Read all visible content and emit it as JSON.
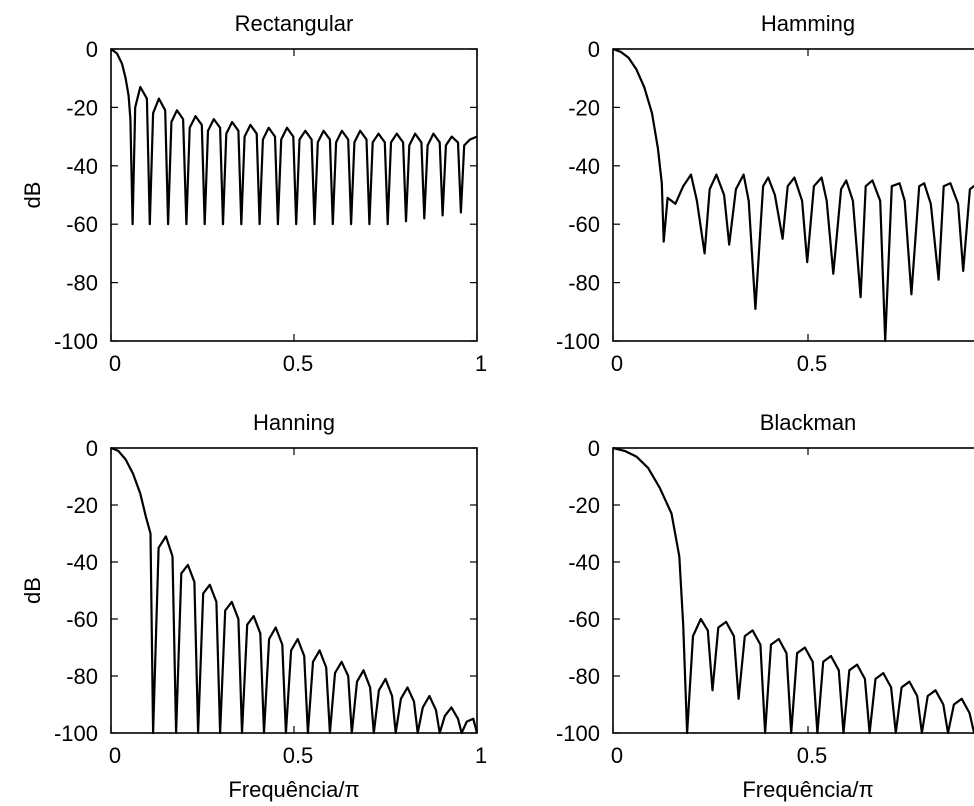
{
  "chart_data": [
    {
      "type": "line",
      "title": "Rectangular",
      "xlabel": "",
      "ylabel": "dB",
      "xlim": [
        0,
        1
      ],
      "ylim": [
        -100,
        0
      ],
      "xticks": [
        0,
        0.5,
        1
      ],
      "xtick_labels": [
        "0",
        "0.5",
        "1"
      ],
      "yticks": [
        0,
        -20,
        -40,
        -60,
        -80,
        -100
      ],
      "ytick_labels": [
        "0",
        "-20",
        "-40",
        "-60",
        "-80",
        "-100"
      ],
      "grid": false,
      "series": [
        {
          "x": [
            0,
            0.016,
            0.03,
            0.04,
            0.048,
            0.053,
            0.059,
            0.066,
            0.08,
            0.098,
            0.106,
            0.115,
            0.131,
            0.148,
            0.156,
            0.165,
            0.18,
            0.197,
            0.206,
            0.215,
            0.231,
            0.248,
            0.256,
            0.265,
            0.281,
            0.298,
            0.306,
            0.315,
            0.331,
            0.348,
            0.356,
            0.365,
            0.381,
            0.398,
            0.406,
            0.415,
            0.431,
            0.448,
            0.456,
            0.465,
            0.481,
            0.498,
            0.506,
            0.515,
            0.531,
            0.548,
            0.556,
            0.565,
            0.581,
            0.598,
            0.606,
            0.615,
            0.631,
            0.648,
            0.656,
            0.665,
            0.681,
            0.698,
            0.706,
            0.715,
            0.731,
            0.748,
            0.756,
            0.765,
            0.781,
            0.798,
            0.806,
            0.815,
            0.831,
            0.848,
            0.856,
            0.865,
            0.881,
            0.898,
            0.906,
            0.915,
            0.931,
            0.948,
            0.956,
            0.965,
            0.981,
            1.0
          ],
          "y": [
            0,
            -1.5,
            -5,
            -10,
            -16,
            -24,
            -60,
            -20,
            -13,
            -17,
            -60,
            -22,
            -17,
            -21,
            -60,
            -25,
            -21,
            -24,
            -60,
            -27,
            -23,
            -26,
            -60,
            -28,
            -24,
            -27,
            -60,
            -29,
            -25,
            -28,
            -60,
            -30,
            -26,
            -29,
            -60,
            -31,
            -27,
            -30,
            -60,
            -31,
            -27,
            -30,
            -60,
            -31,
            -28,
            -31,
            -60,
            -32,
            -28,
            -31,
            -60,
            -32,
            -28,
            -31,
            -60,
            -32,
            -28,
            -31,
            -60,
            -32,
            -29,
            -32,
            -60,
            -32,
            -29,
            -32,
            -59,
            -33,
            -29,
            -32,
            -58,
            -33,
            -29,
            -32,
            -57,
            -33,
            -30,
            -32,
            -56,
            -33,
            -31,
            -30
          ]
        }
      ]
    },
    {
      "type": "line",
      "title": "Hamming",
      "xlabel": "",
      "ylabel": "",
      "xlim": [
        0,
        1
      ],
      "ylim": [
        -100,
        0
      ],
      "xticks": [
        0,
        0.5
      ],
      "xtick_labels": [
        "0",
        "0.5"
      ],
      "yticks": [
        0,
        -20,
        -40,
        -60,
        -80,
        -100
      ],
      "ytick_labels": [
        "0",
        "-20",
        "-40",
        "-60",
        "-80",
        "-100"
      ],
      "grid": false,
      "series": [
        {
          "x": [
            0,
            0.02,
            0.04,
            0.06,
            0.08,
            0.1,
            0.115,
            0.125,
            0.13,
            0.14,
            0.16,
            0.18,
            0.2,
            0.215,
            0.235,
            0.248,
            0.265,
            0.285,
            0.298,
            0.315,
            0.335,
            0.348,
            0.365,
            0.385,
            0.398,
            0.415,
            0.435,
            0.448,
            0.465,
            0.485,
            0.498,
            0.515,
            0.535,
            0.548,
            0.565,
            0.585,
            0.598,
            0.615,
            0.635,
            0.648,
            0.665,
            0.685,
            0.698,
            0.715,
            0.735,
            0.748,
            0.765,
            0.785,
            0.798,
            0.815,
            0.835,
            0.848,
            0.865,
            0.885,
            0.898,
            0.915,
            0.935,
            0.948,
            0.965,
            0.985,
            1.0
          ],
          "y": [
            0,
            -1,
            -3,
            -7,
            -13,
            -22,
            -34,
            -46,
            -66,
            -51,
            -53,
            -47,
            -43,
            -52,
            -70,
            -48,
            -43,
            -50,
            -67,
            -48,
            -43,
            -52,
            -89,
            -47,
            -44,
            -50,
            -65,
            -47,
            -44,
            -52,
            -73,
            -47,
            -44,
            -52,
            -77,
            -48,
            -45,
            -52,
            -85,
            -47,
            -45,
            -52,
            -100,
            -47,
            -46,
            -52,
            -84,
            -47,
            -46,
            -53,
            -79,
            -47,
            -46,
            -53,
            -76,
            -48,
            -46,
            -53,
            -75,
            -47,
            -46
          ]
        }
      ]
    },
    {
      "type": "line",
      "title": "Hanning",
      "xlabel": "Frequência/π",
      "ylabel": "dB",
      "xlim": [
        0,
        1
      ],
      "ylim": [
        -100,
        0
      ],
      "xticks": [
        0,
        0.5,
        1
      ],
      "xtick_labels": [
        "0",
        "0.5",
        "1"
      ],
      "yticks": [
        0,
        -20,
        -40,
        -60,
        -80,
        -100
      ],
      "ytick_labels": [
        "0",
        "-20",
        "-40",
        "-60",
        "-80",
        "-100"
      ],
      "grid": false,
      "series": [
        {
          "x": [
            0,
            0.02,
            0.04,
            0.06,
            0.08,
            0.095,
            0.108,
            0.115,
            0.13,
            0.15,
            0.168,
            0.178,
            0.192,
            0.21,
            0.228,
            0.238,
            0.252,
            0.27,
            0.288,
            0.298,
            0.312,
            0.33,
            0.348,
            0.358,
            0.372,
            0.39,
            0.408,
            0.418,
            0.432,
            0.45,
            0.468,
            0.478,
            0.492,
            0.51,
            0.528,
            0.538,
            0.552,
            0.57,
            0.588,
            0.598,
            0.612,
            0.63,
            0.648,
            0.658,
            0.672,
            0.69,
            0.708,
            0.718,
            0.732,
            0.75,
            0.768,
            0.778,
            0.792,
            0.81,
            0.828,
            0.838,
            0.852,
            0.87,
            0.888,
            0.898,
            0.912,
            0.93,
            0.948,
            0.958,
            0.972,
            0.99,
            1.0
          ],
          "y": [
            0,
            -1,
            -4,
            -9,
            -16,
            -24,
            -30,
            -100,
            -35,
            -31,
            -38,
            -100,
            -44,
            -41,
            -47,
            -100,
            -51,
            -48,
            -54,
            -100,
            -57,
            -54,
            -60,
            -100,
            -62,
            -59,
            -65,
            -100,
            -67,
            -63,
            -69,
            -100,
            -71,
            -67,
            -73,
            -100,
            -75,
            -71,
            -77,
            -100,
            -79,
            -75,
            -80,
            -100,
            -82,
            -78,
            -84,
            -100,
            -85,
            -81,
            -87,
            -100,
            -88,
            -84,
            -89,
            -100,
            -91,
            -87,
            -92,
            -100,
            -94,
            -91,
            -95,
            -100,
            -96,
            -95,
            -100
          ]
        }
      ]
    },
    {
      "type": "line",
      "title": "Blackman",
      "xlabel": "Frequência/π",
      "ylabel": "",
      "xlim": [
        0,
        1
      ],
      "ylim": [
        -100,
        0
      ],
      "xticks": [
        0,
        0.5
      ],
      "xtick_labels": [
        "0",
        "0.5"
      ],
      "yticks": [
        0,
        -20,
        -40,
        -60,
        -80,
        -100
      ],
      "ytick_labels": [
        "0",
        "-20",
        "-40",
        "-60",
        "-80",
        "-100"
      ],
      "grid": false,
      "series": [
        {
          "x": [
            0,
            0.03,
            0.06,
            0.09,
            0.12,
            0.15,
            0.17,
            0.18,
            0.19,
            0.205,
            0.225,
            0.243,
            0.255,
            0.27,
            0.29,
            0.31,
            0.322,
            0.338,
            0.358,
            0.378,
            0.39,
            0.405,
            0.425,
            0.445,
            0.457,
            0.472,
            0.492,
            0.512,
            0.524,
            0.539,
            0.559,
            0.579,
            0.591,
            0.606,
            0.626,
            0.646,
            0.658,
            0.673,
            0.693,
            0.713,
            0.725,
            0.74,
            0.76,
            0.78,
            0.792,
            0.807,
            0.827,
            0.847,
            0.859,
            0.874,
            0.894,
            0.914,
            0.926,
            0.941,
            0.961,
            0.981,
            1.0
          ],
          "y": [
            0,
            -1,
            -3,
            -7,
            -14,
            -23,
            -38,
            -62,
            -100,
            -66,
            -60,
            -64,
            -85,
            -63,
            -61,
            -66,
            -88,
            -66,
            -64,
            -69,
            -100,
            -69,
            -67,
            -72,
            -100,
            -72,
            -70,
            -75,
            -100,
            -75,
            -73,
            -78,
            -100,
            -78,
            -76,
            -81,
            -100,
            -81,
            -79,
            -84,
            -100,
            -84,
            -82,
            -87,
            -100,
            -87,
            -85,
            -90,
            -100,
            -90,
            -88,
            -93,
            -100,
            -93,
            -92,
            -97,
            -100
          ]
        }
      ]
    }
  ]
}
